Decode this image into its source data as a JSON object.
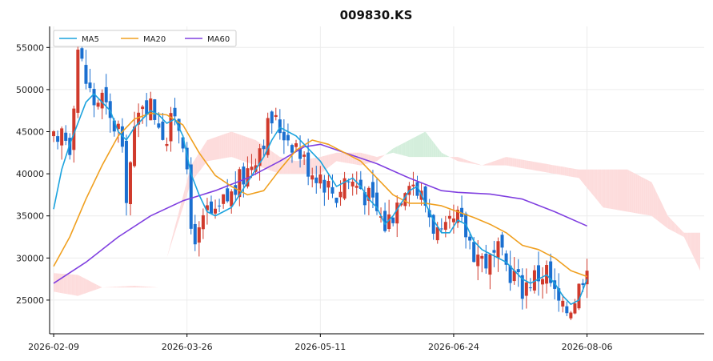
{
  "chart_data": {
    "type": "candlestick",
    "title": "009830.KS",
    "xlabel": "",
    "ylabel": "",
    "x_tick_labels": [
      "2026-02-09",
      "2026-03-26",
      "2026-05-11",
      "2026-06-24",
      "2026-08-06"
    ],
    "x_tick_index": [
      0,
      33,
      66,
      99,
      132
    ],
    "y_ticks": [
      25000,
      30000,
      35000,
      40000,
      45000,
      50000,
      55000
    ],
    "ylim": [
      21000,
      57500
    ],
    "xlim": [
      -1,
      161
    ],
    "grid": true,
    "legend_position": "top-left",
    "legend": [
      {
        "name": "MA5",
        "color": "#1ca3de"
      },
      {
        "name": "MA20",
        "color": "#f0a020"
      },
      {
        "name": "MA60",
        "color": "#8040e0"
      }
    ],
    "colors": {
      "up": "#d03a2c",
      "down": "#1a6fd0",
      "cloud_bull": "#d4eedc",
      "cloud_bear": "#fddcdc"
    },
    "price_path": [
      [
        0,
        43800
      ],
      [
        1,
        42500
      ],
      [
        2,
        45000
      ],
      [
        4,
        43500
      ],
      [
        6,
        55000
      ],
      [
        8,
        51000
      ],
      [
        10,
        48500
      ],
      [
        12,
        49000
      ],
      [
        14,
        46000
      ],
      [
        16,
        45500
      ],
      [
        18,
        38000
      ],
      [
        20,
        44500
      ],
      [
        22,
        49000
      ],
      [
        24,
        48000
      ],
      [
        26,
        46500
      ],
      [
        28,
        44000
      ],
      [
        30,
        47500
      ],
      [
        32,
        44500
      ],
      [
        34,
        33500
      ],
      [
        36,
        32500
      ],
      [
        38,
        35500
      ],
      [
        40,
        34500
      ],
      [
        42,
        36500
      ],
      [
        44,
        37500
      ],
      [
        46,
        39000
      ],
      [
        48,
        40500
      ],
      [
        50,
        42500
      ],
      [
        52,
        44500
      ],
      [
        54,
        46500
      ],
      [
        56,
        45500
      ],
      [
        58,
        44500
      ],
      [
        60,
        43500
      ],
      [
        62,
        41500
      ],
      [
        64,
        40500
      ],
      [
        66,
        40000
      ],
      [
        68,
        38500
      ],
      [
        70,
        37500
      ],
      [
        72,
        39500
      ],
      [
        74,
        39000
      ],
      [
        76,
        38500
      ],
      [
        78,
        37000
      ],
      [
        80,
        35500
      ],
      [
        82,
        34000
      ],
      [
        84,
        35500
      ],
      [
        86,
        38000
      ],
      [
        88,
        40000
      ],
      [
        90,
        38000
      ],
      [
        92,
        36500
      ],
      [
        94,
        34000
      ],
      [
        96,
        32000
      ],
      [
        98,
        33500
      ],
      [
        100,
        34500
      ],
      [
        102,
        33000
      ],
      [
        104,
        31000
      ],
      [
        106,
        30000
      ],
      [
        108,
        29500
      ],
      [
        110,
        30500
      ],
      [
        112,
        29000
      ],
      [
        114,
        28000
      ],
      [
        116,
        26500
      ],
      [
        118,
        27500
      ],
      [
        120,
        28000
      ],
      [
        122,
        28500
      ],
      [
        124,
        25500
      ],
      [
        126,
        23500
      ],
      [
        128,
        24500
      ],
      [
        130,
        26500
      ],
      [
        132,
        30000
      ]
    ],
    "ma5": [
      [
        0,
        35800
      ],
      [
        2,
        40500
      ],
      [
        4,
        43500
      ],
      [
        6,
        46000
      ],
      [
        8,
        48500
      ],
      [
        10,
        49500
      ],
      [
        12,
        48500
      ],
      [
        14,
        47500
      ],
      [
        16,
        45000
      ],
      [
        18,
        44000
      ],
      [
        20,
        45500
      ],
      [
        22,
        46500
      ],
      [
        24,
        47500
      ],
      [
        26,
        47000
      ],
      [
        28,
        46000
      ],
      [
        30,
        46500
      ],
      [
        32,
        44500
      ],
      [
        34,
        40000
      ],
      [
        36,
        37500
      ],
      [
        38,
        35500
      ],
      [
        40,
        35000
      ],
      [
        42,
        35500
      ],
      [
        44,
        36000
      ],
      [
        46,
        37500
      ],
      [
        48,
        39000
      ],
      [
        50,
        40500
      ],
      [
        52,
        42000
      ],
      [
        54,
        44000
      ],
      [
        56,
        45500
      ],
      [
        58,
        45000
      ],
      [
        60,
        44500
      ],
      [
        62,
        43500
      ],
      [
        64,
        42500
      ],
      [
        66,
        41500
      ],
      [
        68,
        40000
      ],
      [
        70,
        38500
      ],
      [
        72,
        39000
      ],
      [
        74,
        39500
      ],
      [
        76,
        38500
      ],
      [
        78,
        37000
      ],
      [
        80,
        36000
      ],
      [
        82,
        34000
      ],
      [
        84,
        35000
      ],
      [
        86,
        36500
      ],
      [
        88,
        38000
      ],
      [
        90,
        38500
      ],
      [
        92,
        36500
      ],
      [
        94,
        34500
      ],
      [
        96,
        33000
      ],
      [
        98,
        33000
      ],
      [
        100,
        34500
      ],
      [
        102,
        34000
      ],
      [
        104,
        32000
      ],
      [
        106,
        31000
      ],
      [
        108,
        30500
      ],
      [
        110,
        30000
      ],
      [
        112,
        29500
      ],
      [
        114,
        28500
      ],
      [
        116,
        27500
      ],
      [
        118,
        27000
      ],
      [
        120,
        27500
      ],
      [
        122,
        28000
      ],
      [
        124,
        27000
      ],
      [
        126,
        25500
      ],
      [
        128,
        24500
      ],
      [
        130,
        25000
      ],
      [
        132,
        27500
      ]
    ],
    "ma20": [
      [
        0,
        29000
      ],
      [
        4,
        32500
      ],
      [
        8,
        37000
      ],
      [
        12,
        41000
      ],
      [
        16,
        44500
      ],
      [
        20,
        46500
      ],
      [
        24,
        47200
      ],
      [
        28,
        47000
      ],
      [
        32,
        45800
      ],
      [
        36,
        42500
      ],
      [
        40,
        39800
      ],
      [
        44,
        38500
      ],
      [
        48,
        37500
      ],
      [
        52,
        38000
      ],
      [
        56,
        40500
      ],
      [
        60,
        42800
      ],
      [
        64,
        44000
      ],
      [
        68,
        43500
      ],
      [
        72,
        42500
      ],
      [
        76,
        41500
      ],
      [
        80,
        39500
      ],
      [
        84,
        37500
      ],
      [
        88,
        36500
      ],
      [
        92,
        36500
      ],
      [
        96,
        36200
      ],
      [
        100,
        35500
      ],
      [
        104,
        34800
      ],
      [
        108,
        34000
      ],
      [
        112,
        33000
      ],
      [
        116,
        31500
      ],
      [
        120,
        31000
      ],
      [
        124,
        30000
      ],
      [
        128,
        28500
      ],
      [
        132,
        27800
      ]
    ],
    "ma60": [
      [
        0,
        27000
      ],
      [
        8,
        29500
      ],
      [
        16,
        32500
      ],
      [
        24,
        35000
      ],
      [
        32,
        36800
      ],
      [
        40,
        38000
      ],
      [
        48,
        39500
      ],
      [
        56,
        41500
      ],
      [
        62,
        43200
      ],
      [
        66,
        43500
      ],
      [
        72,
        42500
      ],
      [
        80,
        41200
      ],
      [
        88,
        39500
      ],
      [
        96,
        38000
      ],
      [
        100,
        37800
      ],
      [
        108,
        37600
      ],
      [
        116,
        37000
      ],
      [
        124,
        35500
      ],
      [
        132,
        33800
      ]
    ],
    "cloud": [
      [
        0,
        26000,
        28200
      ],
      [
        6,
        25500,
        28000
      ],
      [
        12,
        26500,
        26500
      ],
      [
        20,
        26500,
        26700
      ],
      [
        26,
        26500,
        26500
      ],
      [
        28,
        30000,
        30000
      ],
      [
        34,
        39000,
        41000
      ],
      [
        38,
        41500,
        44000
      ],
      [
        44,
        42000,
        45000
      ],
      [
        50,
        41000,
        44000
      ],
      [
        56,
        40000,
        42000
      ],
      [
        60,
        40000,
        41500
      ],
      [
        66,
        40000,
        42000
      ],
      [
        70,
        41500,
        42500
      ],
      [
        76,
        41000,
        42500
      ],
      [
        80,
        41500,
        42000
      ],
      [
        84,
        43000,
        42500
      ],
      [
        88,
        44000,
        42000
      ],
      [
        92,
        45000,
        42000
      ],
      [
        96,
        42500,
        42000
      ],
      [
        100,
        41500,
        42000
      ],
      [
        106,
        41000,
        41000
      ],
      [
        112,
        41000,
        42000
      ],
      [
        118,
        40500,
        41500
      ],
      [
        124,
        40000,
        41000
      ],
      [
        130,
        39500,
        40500
      ],
      [
        136,
        36000,
        40500
      ],
      [
        142,
        35500,
        40500
      ],
      [
        148,
        35000,
        39000
      ],
      [
        152,
        33500,
        35000
      ],
      [
        156,
        32500,
        33000
      ],
      [
        160,
        28500,
        33000
      ]
    ]
  }
}
